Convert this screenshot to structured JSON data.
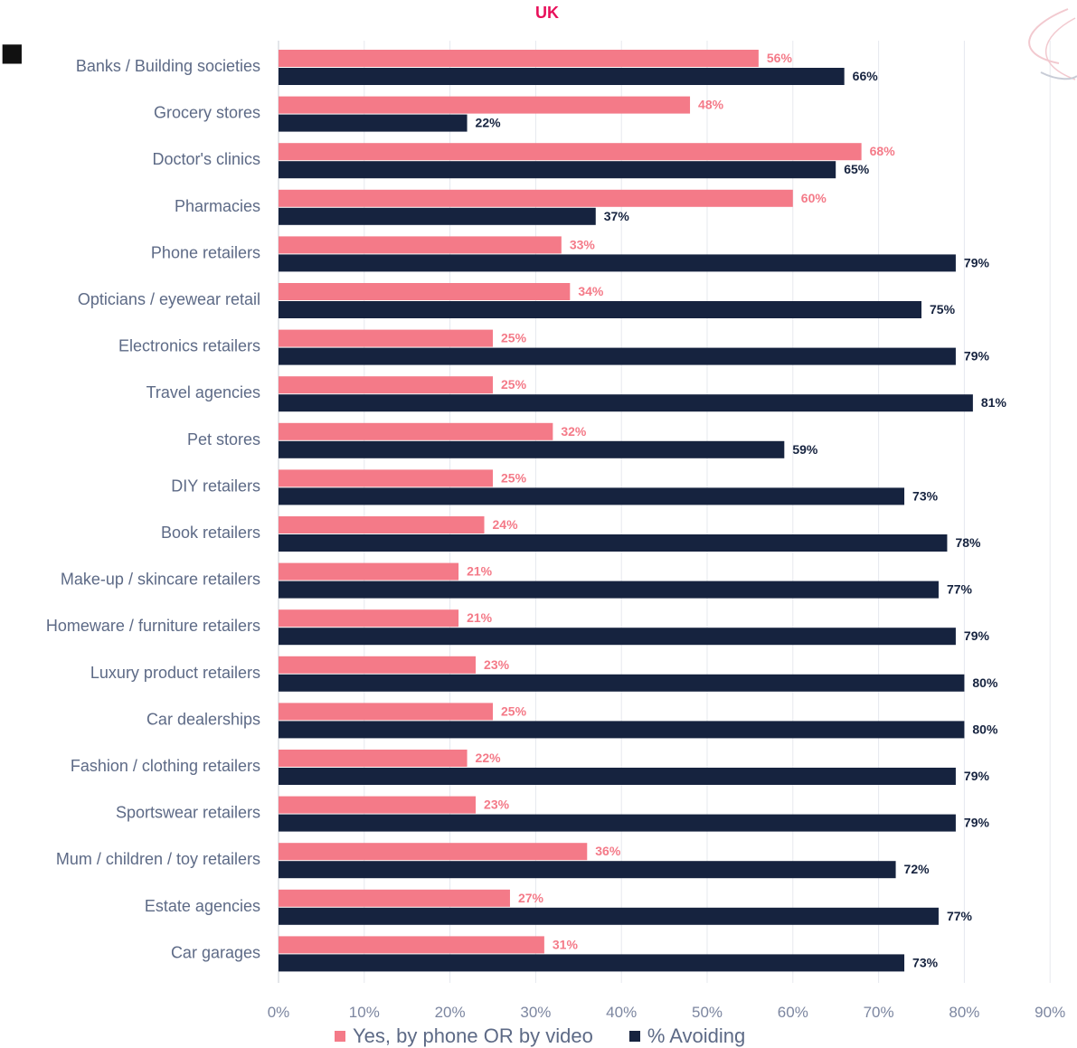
{
  "chart_data": {
    "type": "bar",
    "orientation": "horizontal",
    "title": "",
    "subtitle": "UK",
    "xlabel": "",
    "ylabel": "",
    "xlim": [
      0,
      90
    ],
    "x_ticks": [
      "0%",
      "10%",
      "20%",
      "30%",
      "40%",
      "50%",
      "60%",
      "70%",
      "80%",
      "90%"
    ],
    "grid": "vertical",
    "legend_position": "bottom",
    "categories": [
      "Banks / Building societies",
      "Grocery stores",
      "Doctor's clinics",
      "Pharmacies",
      "Phone retailers",
      "Opticians / eyewear retail",
      "Electronics retailers",
      "Travel agencies",
      "Pet stores",
      "DIY retailers",
      "Book retailers",
      "Make-up / skincare retailers",
      "Homeware / furniture retailers",
      "Luxury product retailers",
      "Car dealerships",
      "Fashion / clothing retailers",
      "Sportswear retailers",
      "Mum / children / toy retailers",
      "Estate agencies",
      "Car garages"
    ],
    "series": [
      {
        "name": "Yes, by phone OR by video",
        "color": "#f47a88",
        "values": [
          56,
          48,
          68,
          60,
          33,
          34,
          25,
          25,
          32,
          25,
          24,
          21,
          21,
          23,
          25,
          22,
          23,
          36,
          27,
          31
        ],
        "labels": [
          "56%",
          "48%",
          "68%",
          "60%",
          "33%",
          "34%",
          "25%",
          "25%",
          "32%",
          "25%",
          "24%",
          "21%",
          "21%",
          "23%",
          "25%",
          "22%",
          "23%",
          "36%",
          "27%",
          "31%"
        ]
      },
      {
        "name": "% Avoiding",
        "color": "#16233f",
        "values": [
          66,
          22,
          65,
          37,
          79,
          75,
          79,
          81,
          59,
          73,
          78,
          77,
          79,
          80,
          80,
          79,
          79,
          72,
          77,
          73
        ],
        "labels": [
          "66%",
          "22%",
          "65%",
          "37%",
          "79%",
          "75%",
          "79%",
          "81%",
          "59%",
          "73%",
          "78%",
          "77%",
          "79%",
          "80%",
          "80%",
          "79%",
          "79%",
          "72%",
          "77%",
          "73%"
        ]
      }
    ]
  }
}
